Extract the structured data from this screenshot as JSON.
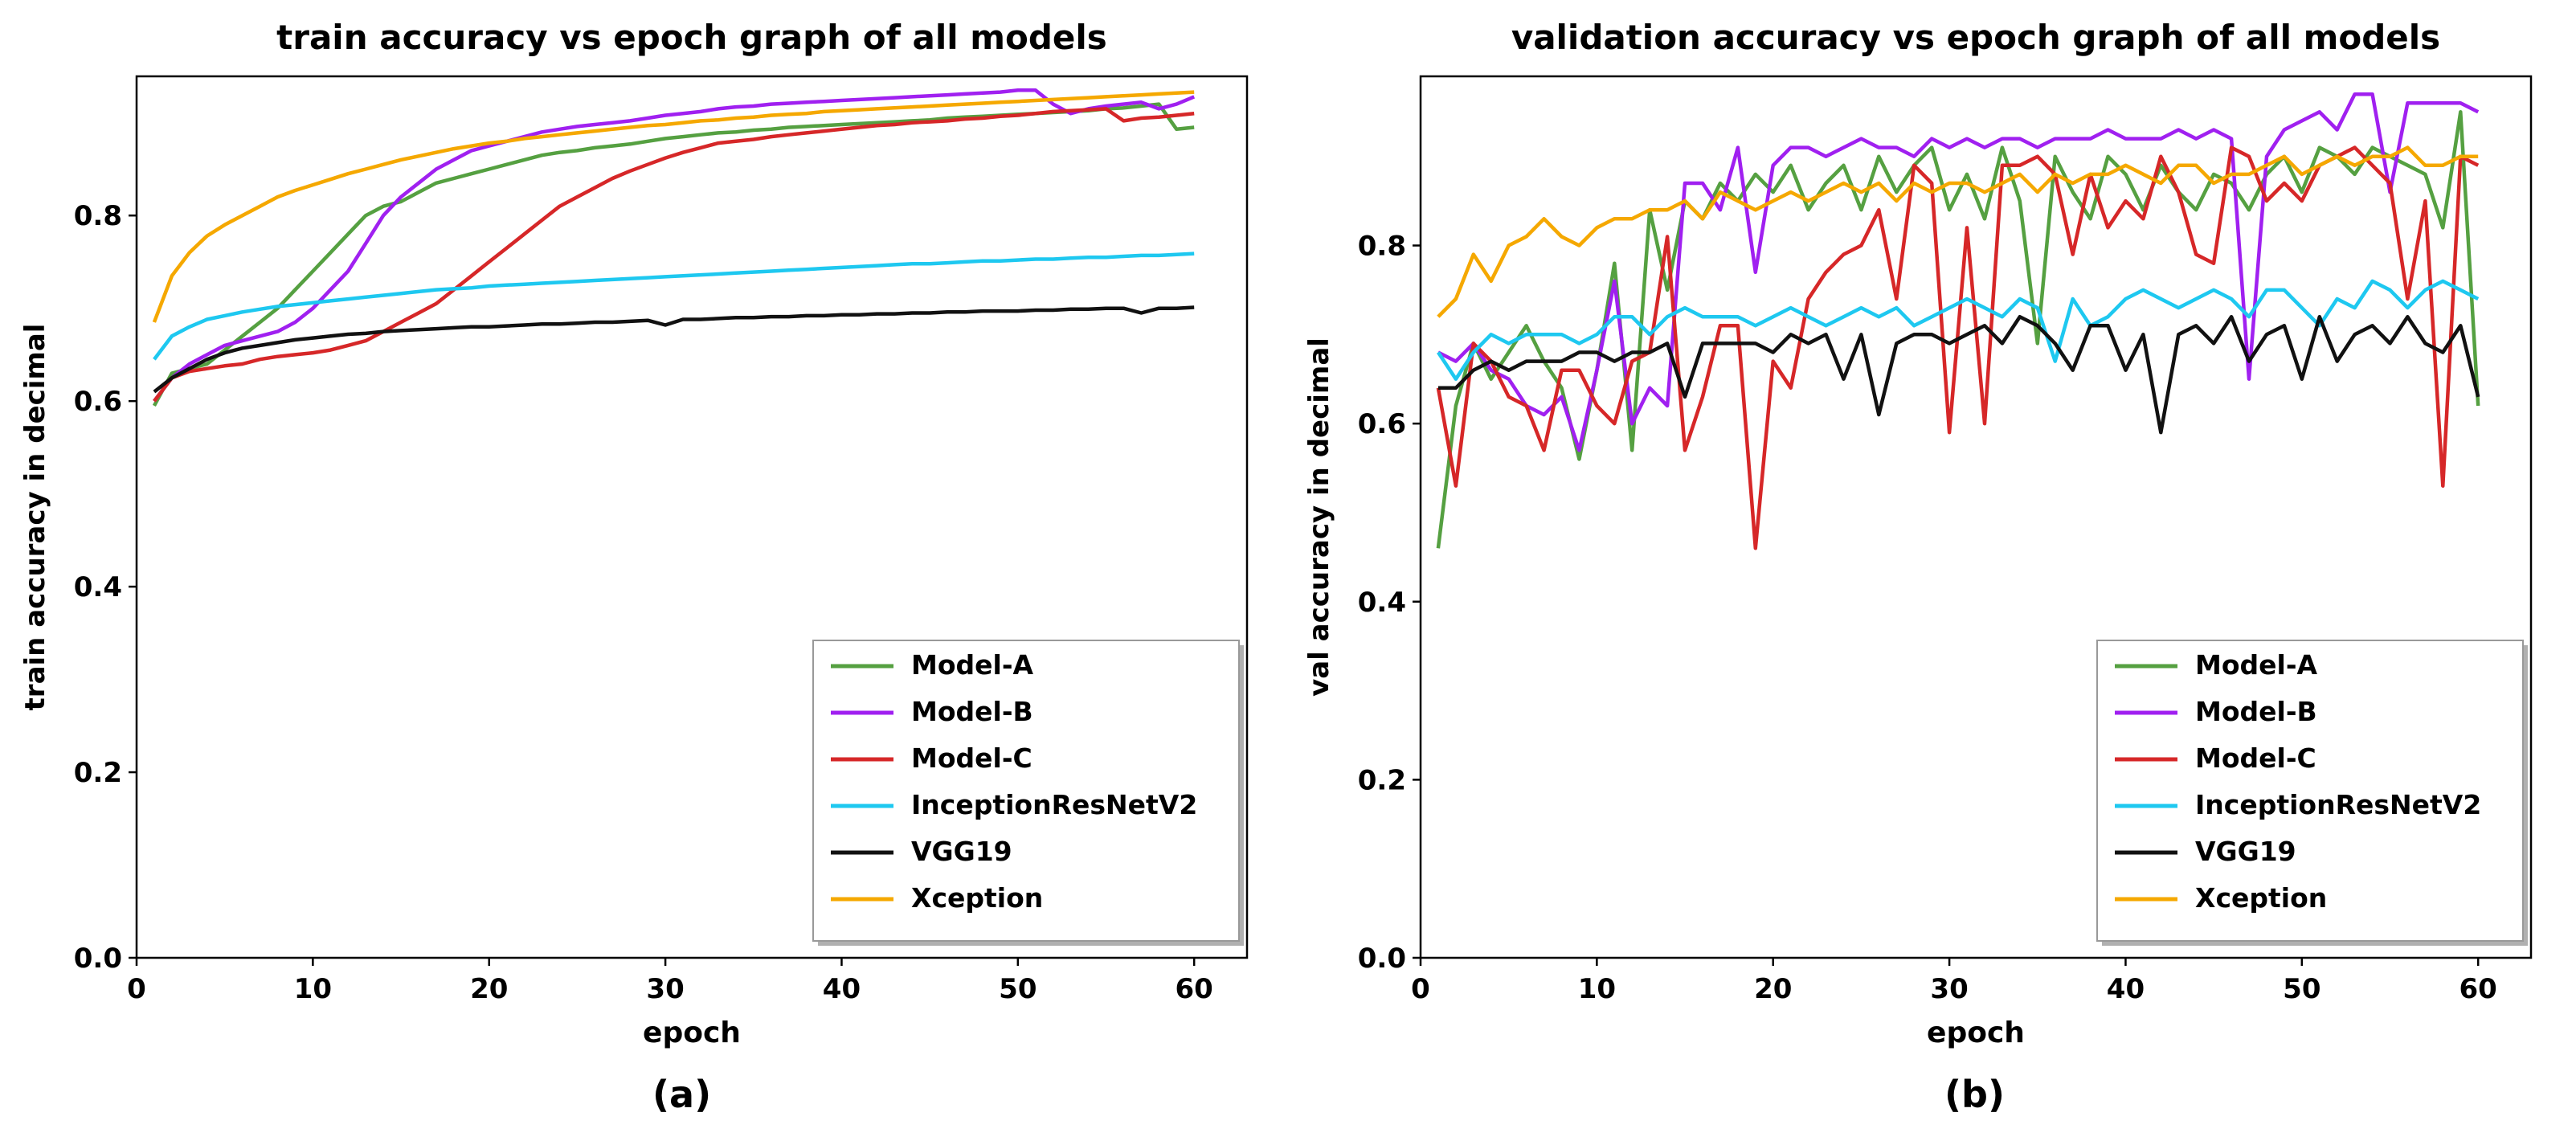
{
  "figure": {
    "caption_a": "(a)",
    "caption_b": "(b)"
  },
  "colors": {
    "Model-A": "#55a041",
    "Model-B": "#a020f0",
    "Model-C": "#d62728",
    "InceptionResNetV2": "#1ec8f0",
    "VGG19": "#111111",
    "Xception": "#f5a800"
  },
  "chart_data": [
    {
      "type": "line",
      "title": "train accuracy vs epoch graph of all models",
      "xlabel": "epoch",
      "ylabel": "train accuracy in decimal",
      "xlim": [
        0,
        63
      ],
      "ylim": [
        0.0,
        0.95
      ],
      "xticks": [
        0,
        10,
        20,
        30,
        40,
        50,
        60
      ],
      "yticks": [
        0.0,
        0.2,
        0.4,
        0.6,
        0.8
      ],
      "legend_position": "lower-right",
      "x": [
        1,
        2,
        3,
        4,
        5,
        6,
        7,
        8,
        9,
        10,
        11,
        12,
        13,
        14,
        15,
        16,
        17,
        18,
        19,
        20,
        21,
        22,
        23,
        24,
        25,
        26,
        27,
        28,
        29,
        30,
        31,
        32,
        33,
        34,
        35,
        36,
        37,
        38,
        39,
        40,
        41,
        42,
        43,
        44,
        45,
        46,
        47,
        48,
        49,
        50,
        51,
        52,
        53,
        54,
        55,
        56,
        57,
        58,
        59,
        60
      ],
      "series": [
        {
          "name": "Model-A",
          "values": [
            0.595,
            0.63,
            0.635,
            0.64,
            0.655,
            0.67,
            0.685,
            0.7,
            0.72,
            0.74,
            0.76,
            0.78,
            0.8,
            0.81,
            0.815,
            0.825,
            0.835,
            0.84,
            0.845,
            0.85,
            0.855,
            0.86,
            0.865,
            0.868,
            0.87,
            0.873,
            0.875,
            0.877,
            0.88,
            0.883,
            0.885,
            0.887,
            0.889,
            0.89,
            0.892,
            0.893,
            0.895,
            0.896,
            0.897,
            0.898,
            0.899,
            0.9,
            0.901,
            0.902,
            0.903,
            0.905,
            0.906,
            0.907,
            0.908,
            0.909,
            0.91,
            0.911,
            0.912,
            0.913,
            0.915,
            0.916,
            0.918,
            0.92,
            0.893,
            0.895
          ]
        },
        {
          "name": "Model-B",
          "values": [
            0.6,
            0.625,
            0.64,
            0.65,
            0.66,
            0.665,
            0.67,
            0.675,
            0.685,
            0.7,
            0.72,
            0.74,
            0.77,
            0.8,
            0.82,
            0.835,
            0.85,
            0.86,
            0.87,
            0.875,
            0.88,
            0.885,
            0.89,
            0.893,
            0.896,
            0.898,
            0.9,
            0.902,
            0.905,
            0.908,
            0.91,
            0.912,
            0.915,
            0.917,
            0.918,
            0.92,
            0.921,
            0.922,
            0.923,
            0.924,
            0.925,
            0.926,
            0.927,
            0.928,
            0.929,
            0.93,
            0.931,
            0.932,
            0.933,
            0.935,
            0.935,
            0.92,
            0.91,
            0.915,
            0.918,
            0.92,
            0.922,
            0.915,
            0.92,
            0.928
          ]
        },
        {
          "name": "Model-C",
          "values": [
            0.6,
            0.625,
            0.632,
            0.635,
            0.638,
            0.64,
            0.645,
            0.648,
            0.65,
            0.652,
            0.655,
            0.66,
            0.665,
            0.675,
            0.685,
            0.695,
            0.705,
            0.72,
            0.735,
            0.75,
            0.765,
            0.78,
            0.795,
            0.81,
            0.82,
            0.83,
            0.84,
            0.848,
            0.855,
            0.862,
            0.868,
            0.873,
            0.878,
            0.88,
            0.882,
            0.885,
            0.887,
            0.889,
            0.891,
            0.893,
            0.895,
            0.897,
            0.898,
            0.9,
            0.901,
            0.902,
            0.904,
            0.905,
            0.907,
            0.908,
            0.91,
            0.912,
            0.913,
            0.914,
            0.915,
            0.902,
            0.905,
            0.906,
            0.908,
            0.91
          ]
        },
        {
          "name": "InceptionResNetV2",
          "values": [
            0.645,
            0.67,
            0.68,
            0.688,
            0.692,
            0.696,
            0.699,
            0.702,
            0.704,
            0.706,
            0.708,
            0.71,
            0.712,
            0.714,
            0.716,
            0.718,
            0.72,
            0.721,
            0.722,
            0.724,
            0.725,
            0.726,
            0.727,
            0.728,
            0.729,
            0.73,
            0.731,
            0.732,
            0.733,
            0.734,
            0.735,
            0.736,
            0.737,
            0.738,
            0.739,
            0.74,
            0.741,
            0.742,
            0.743,
            0.744,
            0.745,
            0.746,
            0.747,
            0.748,
            0.748,
            0.749,
            0.75,
            0.751,
            0.751,
            0.752,
            0.753,
            0.753,
            0.754,
            0.755,
            0.755,
            0.756,
            0.757,
            0.757,
            0.758,
            0.759
          ]
        },
        {
          "name": "VGG19",
          "values": [
            0.61,
            0.625,
            0.635,
            0.645,
            0.652,
            0.657,
            0.66,
            0.663,
            0.666,
            0.668,
            0.67,
            0.672,
            0.673,
            0.675,
            0.676,
            0.677,
            0.678,
            0.679,
            0.68,
            0.68,
            0.681,
            0.682,
            0.683,
            0.683,
            0.684,
            0.685,
            0.685,
            0.686,
            0.687,
            0.682,
            0.688,
            0.688,
            0.689,
            0.69,
            0.69,
            0.691,
            0.691,
            0.692,
            0.692,
            0.693,
            0.693,
            0.694,
            0.694,
            0.695,
            0.695,
            0.696,
            0.696,
            0.697,
            0.697,
            0.697,
            0.698,
            0.698,
            0.699,
            0.699,
            0.7,
            0.7,
            0.695,
            0.7,
            0.7,
            0.701
          ]
        },
        {
          "name": "Xception",
          "values": [
            0.685,
            0.735,
            0.76,
            0.778,
            0.79,
            0.8,
            0.81,
            0.82,
            0.827,
            0.833,
            0.839,
            0.845,
            0.85,
            0.855,
            0.86,
            0.864,
            0.868,
            0.872,
            0.875,
            0.878,
            0.88,
            0.883,
            0.885,
            0.887,
            0.889,
            0.891,
            0.893,
            0.895,
            0.897,
            0.898,
            0.9,
            0.902,
            0.903,
            0.905,
            0.906,
            0.908,
            0.909,
            0.91,
            0.912,
            0.913,
            0.914,
            0.915,
            0.916,
            0.917,
            0.918,
            0.919,
            0.92,
            0.921,
            0.922,
            0.923,
            0.924,
            0.925,
            0.926,
            0.927,
            0.928,
            0.929,
            0.93,
            0.931,
            0.932,
            0.933
          ]
        }
      ]
    },
    {
      "type": "line",
      "title": "validation accuracy vs epoch graph of all models",
      "xlabel": "epoch",
      "ylabel": "val accuracy in decimal",
      "xlim": [
        0,
        63
      ],
      "ylim": [
        0.0,
        0.99
      ],
      "xticks": [
        0,
        10,
        20,
        30,
        40,
        50,
        60
      ],
      "yticks": [
        0.0,
        0.2,
        0.4,
        0.6,
        0.8
      ],
      "legend_position": "lower-right",
      "x": [
        1,
        2,
        3,
        4,
        5,
        6,
        7,
        8,
        9,
        10,
        11,
        12,
        13,
        14,
        15,
        16,
        17,
        18,
        19,
        20,
        21,
        22,
        23,
        24,
        25,
        26,
        27,
        28,
        29,
        30,
        31,
        32,
        33,
        34,
        35,
        36,
        37,
        38,
        39,
        40,
        41,
        42,
        43,
        44,
        45,
        46,
        47,
        48,
        49,
        50,
        51,
        52,
        53,
        54,
        55,
        56,
        57,
        58,
        59,
        60
      ],
      "series": [
        {
          "name": "Model-A",
          "values": [
            0.46,
            0.62,
            0.69,
            0.65,
            0.68,
            0.71,
            0.67,
            0.64,
            0.56,
            0.66,
            0.78,
            0.57,
            0.84,
            0.75,
            0.85,
            0.83,
            0.87,
            0.85,
            0.88,
            0.86,
            0.89,
            0.84,
            0.87,
            0.89,
            0.84,
            0.9,
            0.86,
            0.89,
            0.91,
            0.84,
            0.88,
            0.83,
            0.91,
            0.85,
            0.69,
            0.9,
            0.86,
            0.83,
            0.9,
            0.88,
            0.84,
            0.89,
            0.86,
            0.84,
            0.88,
            0.87,
            0.84,
            0.88,
            0.9,
            0.86,
            0.91,
            0.9,
            0.88,
            0.91,
            0.9,
            0.89,
            0.88,
            0.82,
            0.95,
            0.62
          ]
        },
        {
          "name": "Model-B",
          "values": [
            0.68,
            0.67,
            0.69,
            0.66,
            0.65,
            0.62,
            0.61,
            0.63,
            0.57,
            0.66,
            0.76,
            0.6,
            0.64,
            0.62,
            0.87,
            0.87,
            0.84,
            0.91,
            0.77,
            0.89,
            0.91,
            0.91,
            0.9,
            0.91,
            0.92,
            0.91,
            0.91,
            0.9,
            0.92,
            0.91,
            0.92,
            0.91,
            0.92,
            0.92,
            0.91,
            0.92,
            0.92,
            0.92,
            0.93,
            0.92,
            0.92,
            0.92,
            0.93,
            0.92,
            0.93,
            0.92,
            0.65,
            0.9,
            0.93,
            0.94,
            0.95,
            0.93,
            0.97,
            0.97,
            0.86,
            0.96,
            0.96,
            0.96,
            0.96,
            0.95
          ]
        },
        {
          "name": "Model-C",
          "values": [
            0.64,
            0.53,
            0.69,
            0.67,
            0.63,
            0.62,
            0.57,
            0.66,
            0.66,
            0.62,
            0.6,
            0.67,
            0.68,
            0.81,
            0.57,
            0.63,
            0.71,
            0.71,
            0.46,
            0.67,
            0.64,
            0.74,
            0.77,
            0.79,
            0.8,
            0.84,
            0.74,
            0.89,
            0.87,
            0.59,
            0.82,
            0.6,
            0.89,
            0.89,
            0.9,
            0.88,
            0.79,
            0.88,
            0.82,
            0.85,
            0.83,
            0.9,
            0.86,
            0.79,
            0.78,
            0.91,
            0.9,
            0.85,
            0.87,
            0.85,
            0.89,
            0.9,
            0.91,
            0.89,
            0.87,
            0.74,
            0.85,
            0.53,
            0.9,
            0.89
          ]
        },
        {
          "name": "InceptionResNetV2",
          "values": [
            0.68,
            0.65,
            0.68,
            0.7,
            0.69,
            0.7,
            0.7,
            0.7,
            0.69,
            0.7,
            0.72,
            0.72,
            0.7,
            0.72,
            0.73,
            0.72,
            0.72,
            0.72,
            0.71,
            0.72,
            0.73,
            0.72,
            0.71,
            0.72,
            0.73,
            0.72,
            0.73,
            0.71,
            0.72,
            0.73,
            0.74,
            0.73,
            0.72,
            0.74,
            0.73,
            0.67,
            0.74,
            0.71,
            0.72,
            0.74,
            0.75,
            0.74,
            0.73,
            0.74,
            0.75,
            0.74,
            0.72,
            0.75,
            0.75,
            0.73,
            0.71,
            0.74,
            0.73,
            0.76,
            0.75,
            0.73,
            0.75,
            0.76,
            0.75,
            0.74
          ]
        },
        {
          "name": "VGG19",
          "values": [
            0.64,
            0.64,
            0.66,
            0.67,
            0.66,
            0.67,
            0.67,
            0.67,
            0.68,
            0.68,
            0.67,
            0.68,
            0.68,
            0.69,
            0.63,
            0.69,
            0.69,
            0.69,
            0.69,
            0.68,
            0.7,
            0.69,
            0.7,
            0.65,
            0.7,
            0.61,
            0.69,
            0.7,
            0.7,
            0.69,
            0.7,
            0.71,
            0.69,
            0.72,
            0.71,
            0.69,
            0.66,
            0.71,
            0.71,
            0.66,
            0.7,
            0.59,
            0.7,
            0.71,
            0.69,
            0.72,
            0.67,
            0.7,
            0.71,
            0.65,
            0.72,
            0.67,
            0.7,
            0.71,
            0.69,
            0.72,
            0.69,
            0.68,
            0.71,
            0.63
          ]
        },
        {
          "name": "Xception",
          "values": [
            0.72,
            0.74,
            0.79,
            0.76,
            0.8,
            0.81,
            0.83,
            0.81,
            0.8,
            0.82,
            0.83,
            0.83,
            0.84,
            0.84,
            0.85,
            0.83,
            0.86,
            0.85,
            0.84,
            0.85,
            0.86,
            0.85,
            0.86,
            0.87,
            0.86,
            0.87,
            0.85,
            0.87,
            0.86,
            0.87,
            0.87,
            0.86,
            0.87,
            0.88,
            0.86,
            0.88,
            0.87,
            0.88,
            0.88,
            0.89,
            0.88,
            0.87,
            0.89,
            0.89,
            0.87,
            0.88,
            0.88,
            0.89,
            0.9,
            0.88,
            0.89,
            0.9,
            0.89,
            0.9,
            0.9,
            0.91,
            0.89,
            0.89,
            0.9,
            0.9
          ]
        }
      ]
    }
  ]
}
